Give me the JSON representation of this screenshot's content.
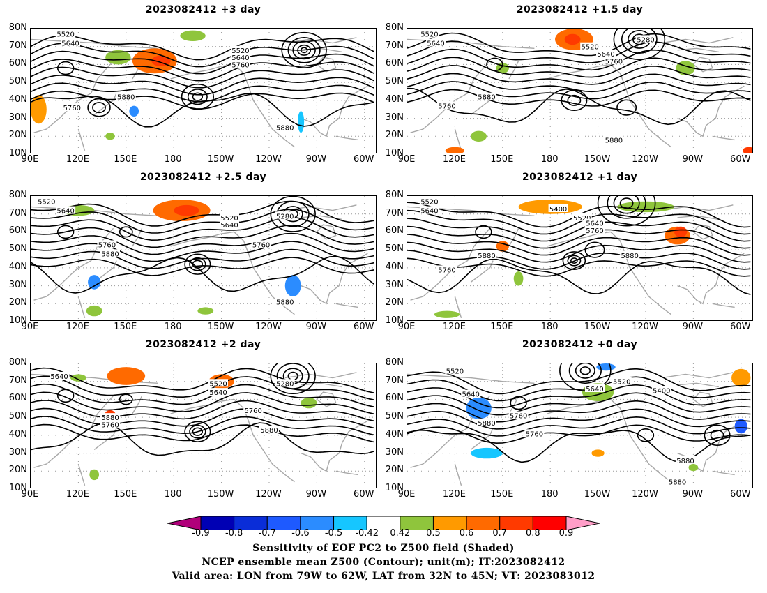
{
  "panels": [
    {
      "title": "2023082412 +3 day",
      "contour_labels": [
        "5520",
        "5640",
        "5520",
        "5640",
        "5760",
        "5880",
        "5760",
        "5880"
      ]
    },
    {
      "title": "2023082412 +1.5 day",
      "contour_labels": [
        "5520",
        "5640",
        "5520",
        "5640",
        "5760",
        "5280",
        "5880",
        "5760",
        "5880"
      ]
    },
    {
      "title": "2023082412 +2.5 day",
      "contour_labels": [
        "5520",
        "5640",
        "5520",
        "5640",
        "5280",
        "5760",
        "5880",
        "5760",
        "5880"
      ]
    },
    {
      "title": "2023082412 +1 day",
      "contour_labels": [
        "5520",
        "5640",
        "5400",
        "5520",
        "5640",
        "5760",
        "5880",
        "5760",
        "5880"
      ]
    },
    {
      "title": "2023082412 +2 day",
      "contour_labels": [
        "5640",
        "5520",
        "5640",
        "5280",
        "5760",
        "5880",
        "5760",
        "5880"
      ]
    },
    {
      "title": "2023082412 +0 day",
      "contour_labels": [
        "5520",
        "5640",
        "5520",
        "5400",
        "5640",
        "5880",
        "5760",
        "5760",
        "5880",
        "5880"
      ]
    }
  ],
  "y_ticks": [
    "80N",
    "70N",
    "60N",
    "50N",
    "40N",
    "30N",
    "20N",
    "10N"
  ],
  "x_ticks": [
    "90E",
    "120E",
    "150E",
    "180",
    "150W",
    "120W",
    "90W",
    "60W"
  ],
  "colorbar": {
    "labels": [
      "-0.9",
      "-0.8",
      "-0.7",
      "-0.6",
      "-0.5",
      "-0.42",
      "0.42",
      "0.5",
      "0.6",
      "0.7",
      "0.8",
      "0.9"
    ],
    "colors": [
      "#b0007a",
      "#0000b4",
      "#0a2dd8",
      "#1e5aff",
      "#2b8cff",
      "#16c6ff",
      "#ffffff",
      "#8fc53c",
      "#ff9a00",
      "#ff6a00",
      "#ff3a00",
      "#ff0000",
      "#ff9ec8"
    ]
  },
  "caption": {
    "line1": "Sensitivity of EOF PC2 to Z500 field (Shaded)",
    "line2": "NCEP ensemble mean Z500 (Contour); unit(m); IT:2023082412",
    "line3": "Valid area: LON from 79W to 62W, LAT from 32N to 45N; VT: 2023083012"
  }
}
